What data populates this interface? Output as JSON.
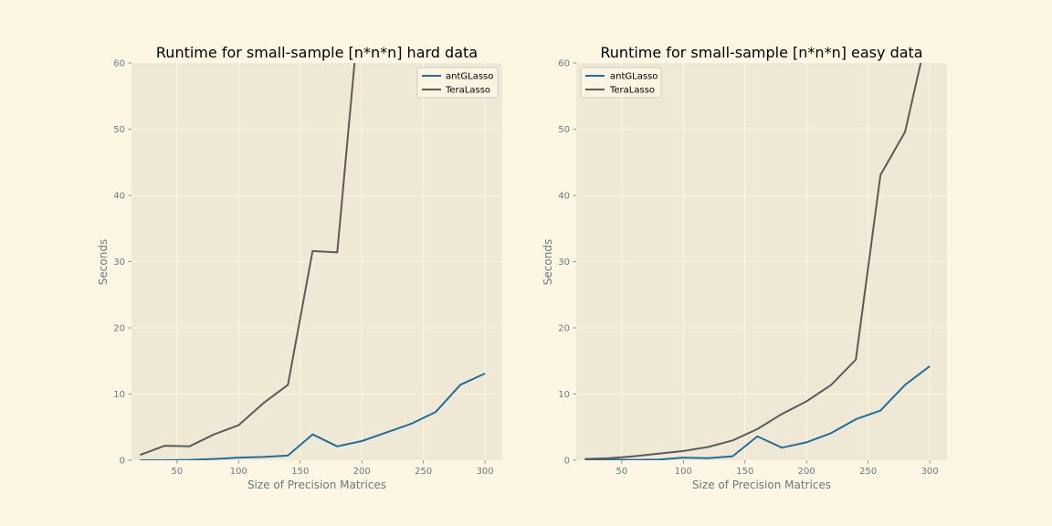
{
  "colors": {
    "figure_background": "#fdf6e3",
    "axes_background": "#eee8d5",
    "grid": "#fdf6e3",
    "antGLasso": "#1f6f9e",
    "TeraLasso": "#5b5b5b"
  },
  "chart_data": [
    {
      "type": "line",
      "title": "Runtime for small-sample [n*n*n] hard data",
      "xlabel": "Size of Precision Matrices",
      "ylabel": "Seconds",
      "xlim": [
        13,
        314
      ],
      "ylim": [
        0,
        60
      ],
      "xticks": [
        50,
        100,
        150,
        200,
        250,
        300
      ],
      "yticks": [
        0,
        10,
        20,
        30,
        40,
        50,
        60
      ],
      "grid": true,
      "legend_position": "top-right",
      "series": [
        {
          "name": "antGLasso",
          "x": [
            20,
            40,
            60,
            80,
            100,
            120,
            140,
            160,
            180,
            200,
            220,
            240,
            260,
            280,
            300
          ],
          "y": [
            0.0,
            0.0,
            0.05,
            0.2,
            0.4,
            0.5,
            0.7,
            3.9,
            2.1,
            2.9,
            4.2,
            5.5,
            7.3,
            11.4,
            13.1
          ]
        },
        {
          "name": "TeraLasso",
          "x": [
            20,
            40,
            60,
            80,
            100,
            120,
            140,
            160,
            180,
            200
          ],
          "y": [
            0.8,
            2.2,
            2.1,
            3.9,
            5.3,
            8.6,
            11.4,
            31.6,
            31.4,
            72.0
          ]
        }
      ]
    },
    {
      "type": "line",
      "title": "Runtime for small-sample [n*n*n] easy data",
      "xlabel": "Size of Precision Matrices",
      "ylabel": "Seconds",
      "xlim": [
        13,
        314
      ],
      "ylim": [
        0,
        60
      ],
      "xticks": [
        50,
        100,
        150,
        200,
        250,
        300
      ],
      "yticks": [
        0,
        10,
        20,
        30,
        40,
        50,
        60
      ],
      "grid": true,
      "legend_position": "top-left",
      "series": [
        {
          "name": "antGLasso",
          "x": [
            20,
            40,
            60,
            80,
            100,
            120,
            140,
            160,
            180,
            200,
            220,
            240,
            260,
            280,
            300
          ],
          "y": [
            0.1,
            0.1,
            0.05,
            0.1,
            0.4,
            0.3,
            0.6,
            3.6,
            1.9,
            2.7,
            4.1,
            6.2,
            7.5,
            11.4,
            14.2
          ]
        },
        {
          "name": "TeraLasso",
          "x": [
            20,
            40,
            60,
            80,
            100,
            120,
            140,
            160,
            180,
            200,
            220,
            240,
            260,
            280,
            300
          ],
          "y": [
            0.2,
            0.3,
            0.6,
            1.0,
            1.4,
            2.0,
            3.0,
            4.7,
            7.0,
            8.9,
            11.4,
            15.2,
            43.1,
            49.6,
            66.0
          ]
        }
      ]
    }
  ]
}
